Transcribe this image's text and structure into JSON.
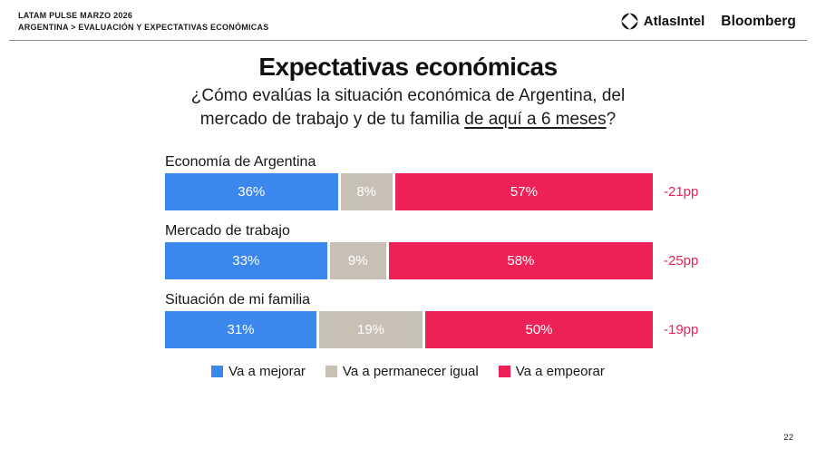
{
  "header": {
    "kicker_line1": "LATAM PULSE MARZO 2026",
    "kicker_line2": "ARGENTINA > EVALUACIÓN Y EXPECTATIVAS ECONÓMICAS",
    "logo_atlasintel": "AtlasIntel",
    "logo_bloomberg": "Bloomberg"
  },
  "title": "Expectativas económicas",
  "subtitle": {
    "line1": "¿Cómo evalúas la situación económica de Argentina, del",
    "line2_prefix": "mercado de trabajo y de tu familia ",
    "underlined": "de aquí a 6 meses",
    "suffix": "?"
  },
  "chart_data": {
    "type": "bar",
    "orientation": "horizontal",
    "stacked": true,
    "unit": "%",
    "categories": [
      "Economía de Argentina",
      "Mercado de trabajo",
      "Situación de mi familia"
    ],
    "series": [
      {
        "name": "Va a mejorar",
        "color": "#3b87eb",
        "values": [
          36,
          33,
          31
        ]
      },
      {
        "name": "Va a permanecer igual",
        "color": "#c9c0b5",
        "values": [
          8,
          9,
          19
        ]
      },
      {
        "name": "Va a empeorar",
        "color": "#ee2157",
        "values": [
          57,
          58,
          50
        ]
      }
    ],
    "deltas": [
      "-21pp",
      "-25pp",
      "-19pp"
    ],
    "delta_color": "#ee2157",
    "value_label_color": "#ffffff",
    "legend_position": "bottom"
  },
  "page_number": "22"
}
